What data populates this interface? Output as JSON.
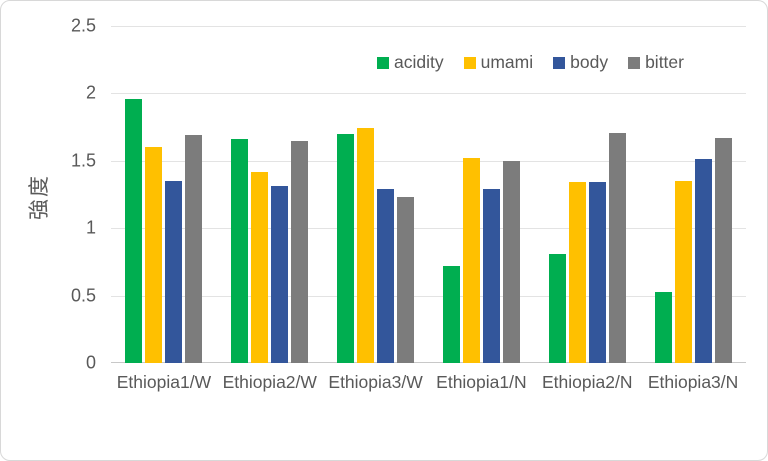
{
  "chart_data": {
    "type": "bar",
    "title": "",
    "xlabel": "",
    "ylabel": "強度",
    "ylim": [
      0,
      2.5
    ],
    "grid": "horizontal",
    "legend_position": "top-center-inside",
    "yticks": [
      {
        "label": "0",
        "value": 0
      },
      {
        "label": "0.5",
        "value": 0.5
      },
      {
        "label": "1",
        "value": 1
      },
      {
        "label": "1.5",
        "value": 1.5
      },
      {
        "label": "2",
        "value": 2
      },
      {
        "label": "2.5",
        "value": 2.5
      }
    ],
    "categories": [
      "Ethiopia1/W",
      "Ethiopia2/W",
      "Ethiopia3/W",
      "Ethiopia1/N",
      "Ethiopia2/N",
      "Ethiopia3/N"
    ],
    "series": [
      {
        "name": "acidity",
        "color": "#00AE50",
        "values": [
          1.96,
          1.66,
          1.7,
          0.72,
          0.81,
          0.53
        ]
      },
      {
        "name": "umami",
        "color": "#FFC000",
        "values": [
          1.6,
          1.42,
          1.74,
          1.52,
          1.34,
          1.35
        ]
      },
      {
        "name": "body",
        "color": "#33569B",
        "values": [
          1.35,
          1.31,
          1.29,
          1.29,
          1.34,
          1.51
        ]
      },
      {
        "name": "bitter",
        "color": "#7C7C7C",
        "values": [
          1.69,
          1.65,
          1.23,
          1.5,
          1.71,
          1.67
        ]
      }
    ]
  },
  "colors": {
    "text": "#595959",
    "gridline": "#E3E3E3",
    "axis_line": "#C8C8C8",
    "chart_border": "#D8D8D8",
    "background": "#FFFFFF"
  }
}
